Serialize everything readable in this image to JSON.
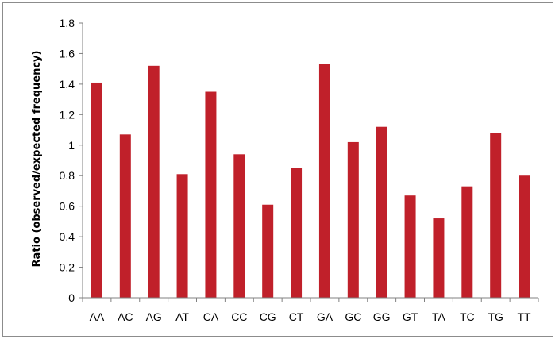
{
  "chart_data": {
    "type": "bar",
    "title": "",
    "xlabel": "",
    "ylabel": "Ratio (observed/expected frequency)",
    "ylim": [
      0,
      1.8
    ],
    "yticks": [
      0,
      0.2,
      0.4,
      0.6,
      0.8,
      1,
      1.2,
      1.4,
      1.6,
      1.8
    ],
    "grid": false,
    "legend": "none",
    "bar_color": "#c0202a",
    "categories": [
      "AA",
      "AC",
      "AG",
      "AT",
      "CA",
      "CC",
      "CG",
      "CT",
      "GA",
      "GC",
      "GG",
      "GT",
      "TA",
      "TC",
      "TG",
      "TT"
    ],
    "values": [
      1.41,
      1.07,
      1.52,
      0.81,
      1.35,
      0.94,
      0.61,
      0.85,
      1.53,
      1.02,
      1.12,
      0.67,
      0.52,
      0.73,
      1.08,
      0.8
    ]
  }
}
